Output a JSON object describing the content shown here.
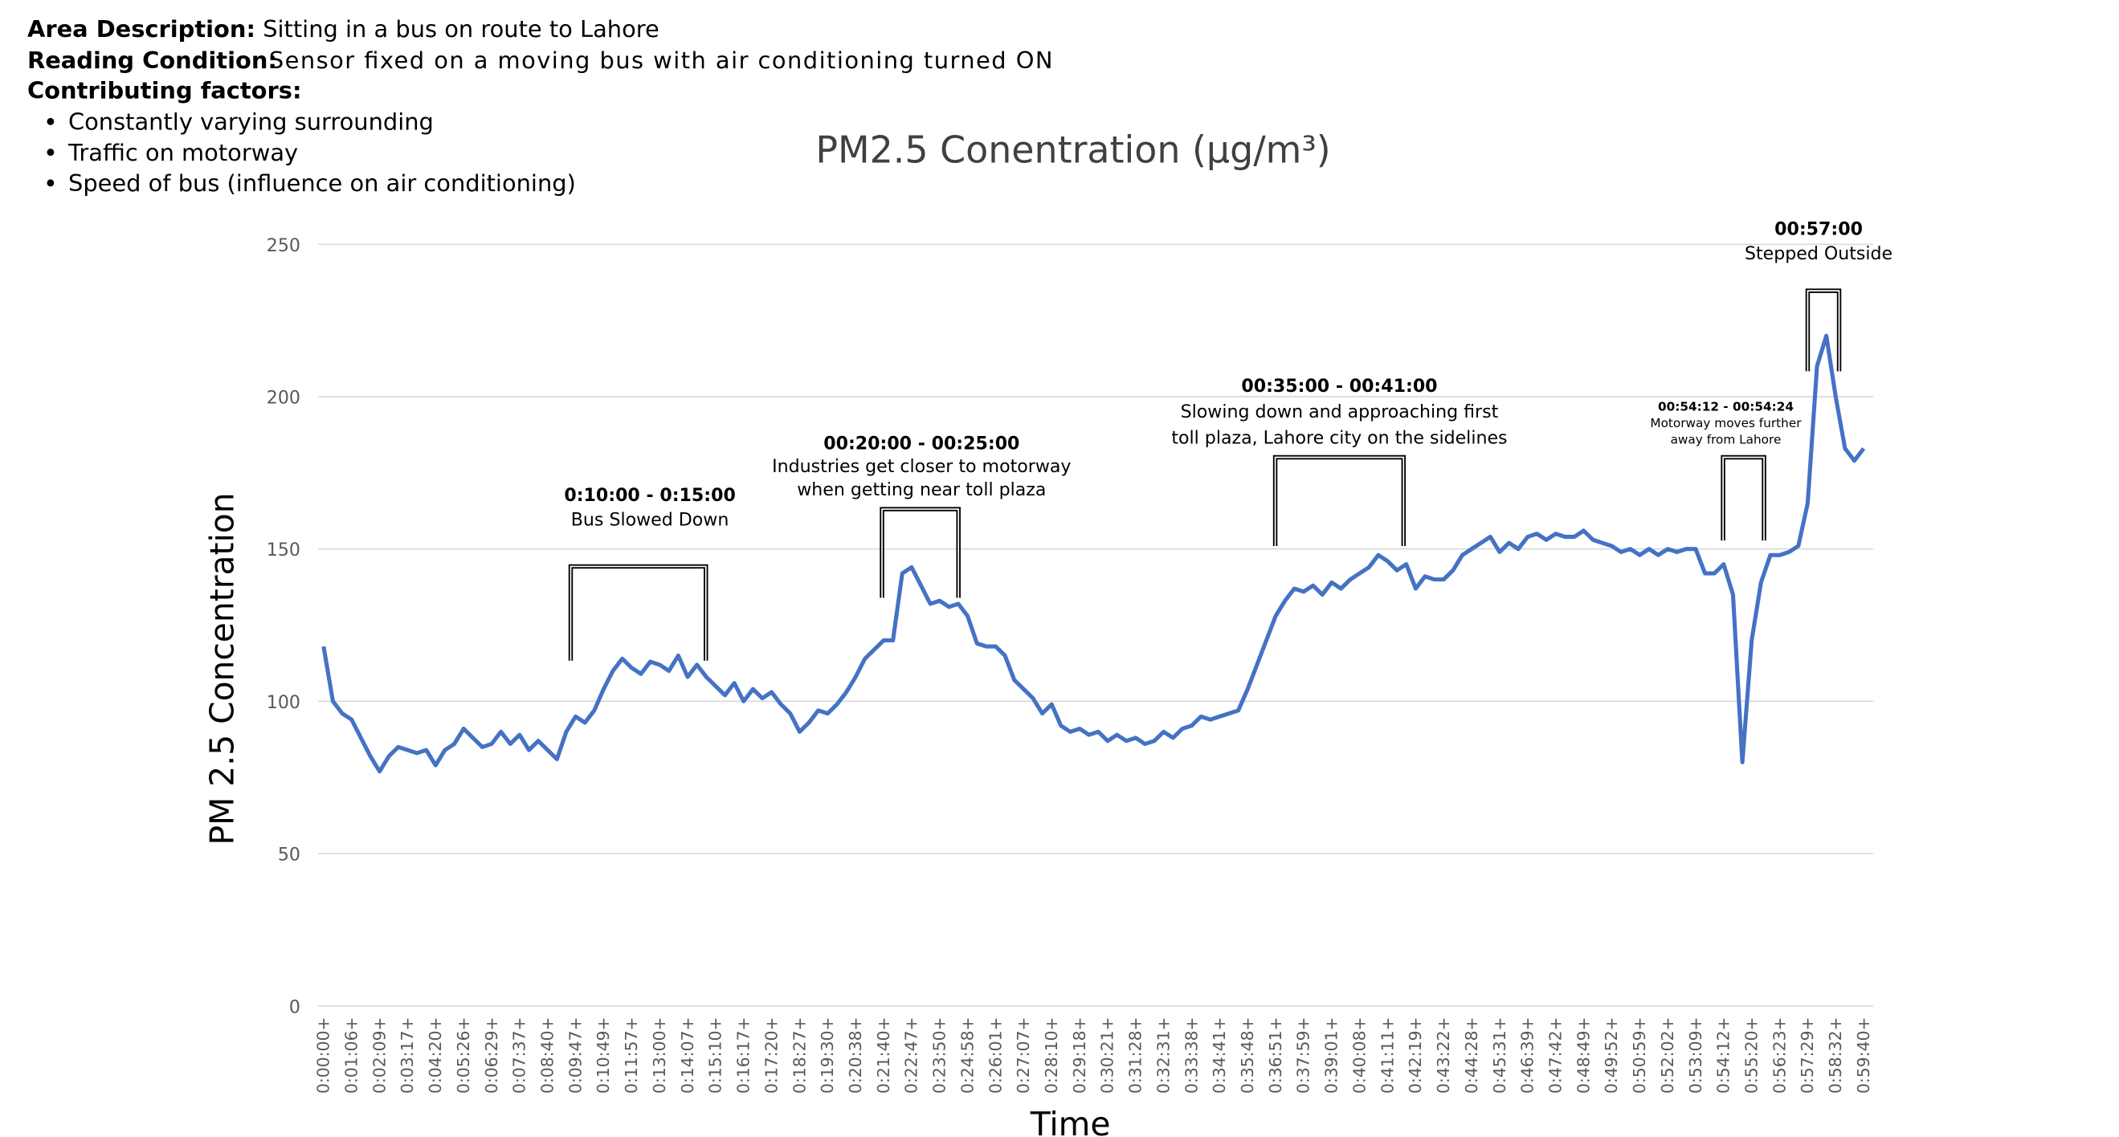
{
  "header": {
    "area_label": "Area Description:",
    "area": "Sitting in a bus on route to Lahore",
    "reading_label": "Reading Condition:",
    "reading": "Sensor fixed on a moving bus with air conditioning turned ON",
    "factors_label": "Contributing factors:",
    "factors": [
      "Constantly varying surrounding",
      "Traffic on motorway",
      "Speed of bus (influence on air conditioning)"
    ]
  },
  "chart_data": {
    "type": "line",
    "title": "PM2.5 Conentration (µg/m³)",
    "x_label": "Time",
    "y_label": "PM 2.5 Concentration",
    "color": "#4472c4",
    "grid": true,
    "ylim": [
      0,
      250
    ],
    "yticks": [
      0,
      50,
      100,
      150,
      200,
      250
    ],
    "categories": [
      "0:00:00+",
      null,
      null,
      "0:01:06+",
      null,
      null,
      "0:02:09+",
      null,
      null,
      "0:03:17+",
      null,
      null,
      "0:04:20+",
      null,
      null,
      "0:05:26+",
      null,
      null,
      "0:06:29+",
      null,
      null,
      "0:07:37+",
      null,
      null,
      "0:08:40+",
      null,
      null,
      "0:09:47+",
      null,
      null,
      "0:10:49+",
      null,
      null,
      "0:11:57+",
      null,
      null,
      "0:13:00+",
      null,
      null,
      "0:14:07+",
      null,
      null,
      "0:15:10+",
      null,
      null,
      "0:16:17+",
      null,
      null,
      "0:17:20+",
      null,
      null,
      "0:18:27+",
      null,
      null,
      "0:19:30+",
      null,
      null,
      "0:20:38+",
      null,
      null,
      "0:21:40+",
      null,
      null,
      "0:22:47+",
      null,
      null,
      "0:23:50+",
      null,
      null,
      "0:24:58+",
      null,
      null,
      "0:26:01+",
      null,
      null,
      "0:27:07+",
      null,
      null,
      "0:28:10+",
      null,
      null,
      "0:29:18+",
      null,
      null,
      "0:30:21+",
      null,
      null,
      "0:31:28+",
      null,
      null,
      "0:32:31+",
      null,
      null,
      "0:33:38+",
      null,
      null,
      "0:34:41+",
      null,
      null,
      "0:35:48+",
      null,
      null,
      "0:36:51+",
      null,
      null,
      "0:37:59+",
      null,
      null,
      "0:39:01+",
      null,
      null,
      "0:40:08+",
      null,
      null,
      "0:41:11+",
      null,
      null,
      "0:42:19+",
      null,
      null,
      "0:43:22+",
      null,
      null,
      "0:44:28+",
      null,
      null,
      "0:45:31+",
      null,
      null,
      "0:46:39+",
      null,
      null,
      "0:47:42+",
      null,
      null,
      "0:48:49+",
      null,
      null,
      "0:49:52+",
      null,
      null,
      "0:50:59+",
      null,
      null,
      "0:52:02+",
      null,
      null,
      "0:53:09+",
      null,
      null,
      "0:54:12+",
      null,
      null,
      "0:55:20+",
      null,
      null,
      "0:56:23+",
      null,
      null,
      "0:57:29+",
      null,
      null,
      "0:58:32+",
      null,
      null,
      "0:59:40+"
    ],
    "values": [
      118,
      100,
      96,
      94,
      88,
      82,
      77,
      82,
      85,
      84,
      83,
      84,
      79,
      84,
      86,
      91,
      88,
      85,
      86,
      90,
      86,
      89,
      84,
      87,
      84,
      81,
      90,
      95,
      93,
      97,
      104,
      110,
      114,
      111,
      109,
      113,
      112,
      110,
      115,
      108,
      112,
      108,
      105,
      102,
      106,
      100,
      104,
      101,
      103,
      99,
      96,
      90,
      93,
      97,
      96,
      99,
      103,
      108,
      114,
      117,
      120,
      120,
      142,
      144,
      138,
      132,
      133,
      131,
      132,
      128,
      119,
      118,
      118,
      115,
      107,
      104,
      101,
      96,
      99,
      92,
      90,
      91,
      89,
      90,
      87,
      89,
      87,
      88,
      86,
      87,
      90,
      88,
      91,
      92,
      95,
      94,
      95,
      96,
      97,
      104,
      112,
      120,
      128,
      133,
      137,
      136,
      138,
      135,
      139,
      137,
      140,
      142,
      144,
      148,
      146,
      143,
      145,
      137,
      141,
      140,
      140,
      143,
      148,
      150,
      152,
      154,
      149,
      152,
      150,
      154,
      155,
      153,
      155,
      154,
      154,
      156,
      153,
      152,
      151,
      149,
      150,
      148,
      150,
      148,
      150,
      149,
      150,
      150,
      142,
      142,
      145,
      135,
      80,
      120,
      139,
      148,
      148,
      149,
      151,
      165,
      210,
      220,
      200,
      183,
      179,
      183
    ],
    "annotations": [
      {
        "label": "0:10:00 - 0:15:00",
        "text": [
          "Bus Slowed Down"
        ]
      },
      {
        "label": "00:20:00 - 00:25:00",
        "text": [
          "Industries get closer to motorway",
          "when getting near toll plaza"
        ]
      },
      {
        "label": "00:35:00 - 00:41:00",
        "text": [
          "Slowing down and approaching first",
          "toll plaza, Lahore city on the sidelines"
        ]
      },
      {
        "label": "00:54:12 - 00:54:24",
        "text": [
          "Motorway moves further",
          "away from Lahore"
        ]
      },
      {
        "label": "00:57:00",
        "text": [
          "Stepped Outside"
        ]
      }
    ]
  }
}
